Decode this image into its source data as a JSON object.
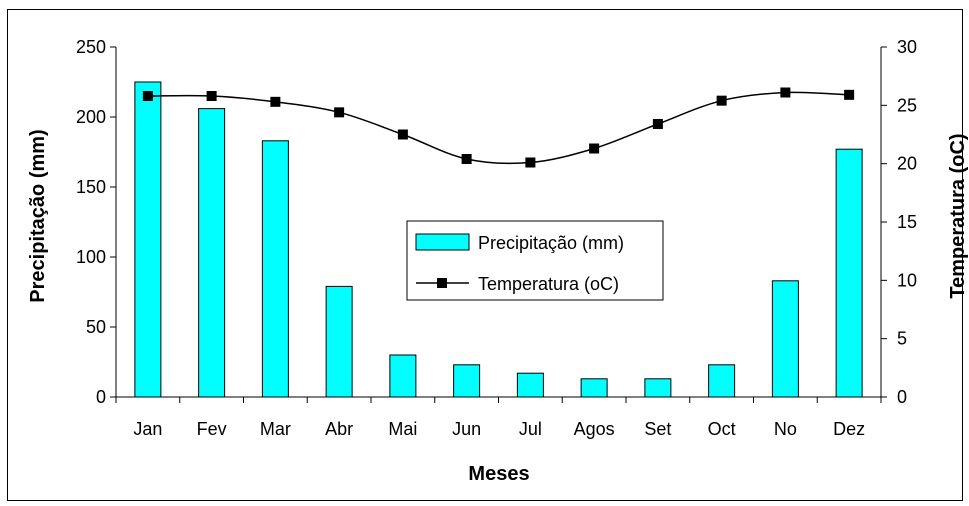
{
  "chart_data": {
    "type": "bar",
    "categories": [
      "Jan",
      "Fev",
      "Mar",
      "Abr",
      "Mai",
      "Jun",
      "Jul",
      "Agos",
      "Set",
      "Oct",
      "No",
      "Dez"
    ],
    "series": [
      {
        "name": "Precipitação (mm)",
        "type": "bar",
        "axis": "left",
        "color": "#00FFFF",
        "values": [
          225,
          206,
          183,
          79,
          30,
          23,
          17,
          13,
          13,
          23,
          83,
          177
        ]
      },
      {
        "name": "Temperatura (oC)",
        "type": "line",
        "axis": "right",
        "color": "#000000",
        "marker": "square",
        "values": [
          25.8,
          25.8,
          25.3,
          24.4,
          22.5,
          20.4,
          20.1,
          21.3,
          23.4,
          25.4,
          26.1,
          25.9
        ]
      }
    ],
    "xlabel": "Meses",
    "ylabel": "Precipitação (mm)",
    "y2label": "Temperatura (oC)",
    "ylim": [
      0,
      250
    ],
    "yticks": [
      0,
      50,
      100,
      150,
      200,
      250
    ],
    "y2lim": [
      0,
      30
    ],
    "y2ticks": [
      0,
      5,
      10,
      15,
      20,
      25,
      30
    ],
    "grid": false,
    "legend_position": "center"
  }
}
